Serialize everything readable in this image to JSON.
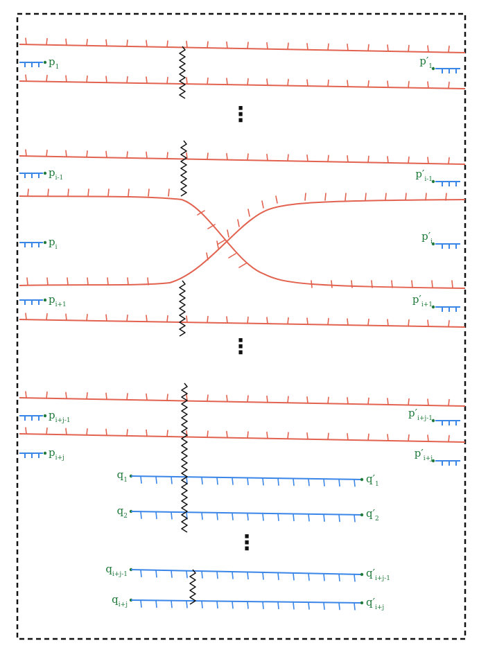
{
  "colors": {
    "strand": "#e2624f",
    "arc": "#3a86e8",
    "squiggle": "#111111",
    "label": "#1f7a3a",
    "border": "#111111"
  },
  "labels": {
    "left": [
      {
        "base": "p",
        "sub": "1"
      },
      {
        "base": "p",
        "sub": "i-1"
      },
      {
        "base": "p",
        "sub": "i"
      },
      {
        "base": "p",
        "sub": "i+1"
      },
      {
        "base": "p",
        "sub": "i+j-1"
      },
      {
        "base": "p",
        "sub": "i+j"
      }
    ],
    "right": [
      {
        "base": "p′",
        "sub": "1"
      },
      {
        "base": "p′",
        "sub": "i-1"
      },
      {
        "base": "p′",
        "sub": "i"
      },
      {
        "base": "p′",
        "sub": "i+1"
      },
      {
        "base": "p′",
        "sub": "i+j-1"
      },
      {
        "base": "p′",
        "sub": "i+j"
      }
    ],
    "q_left": [
      {
        "base": "q",
        "sub": "1"
      },
      {
        "base": "q",
        "sub": "2"
      },
      {
        "base": "q",
        "sub": "i+j-1"
      },
      {
        "base": "q",
        "sub": "i+j"
      }
    ],
    "q_right": [
      {
        "base": "q′",
        "sub": "1"
      },
      {
        "base": "q′",
        "sub": "2"
      },
      {
        "base": "q′",
        "sub": "i+j-1"
      },
      {
        "base": "q′",
        "sub": "i+j"
      }
    ]
  },
  "ellipses": [
    "⋮",
    "⋮",
    "⋮"
  ]
}
